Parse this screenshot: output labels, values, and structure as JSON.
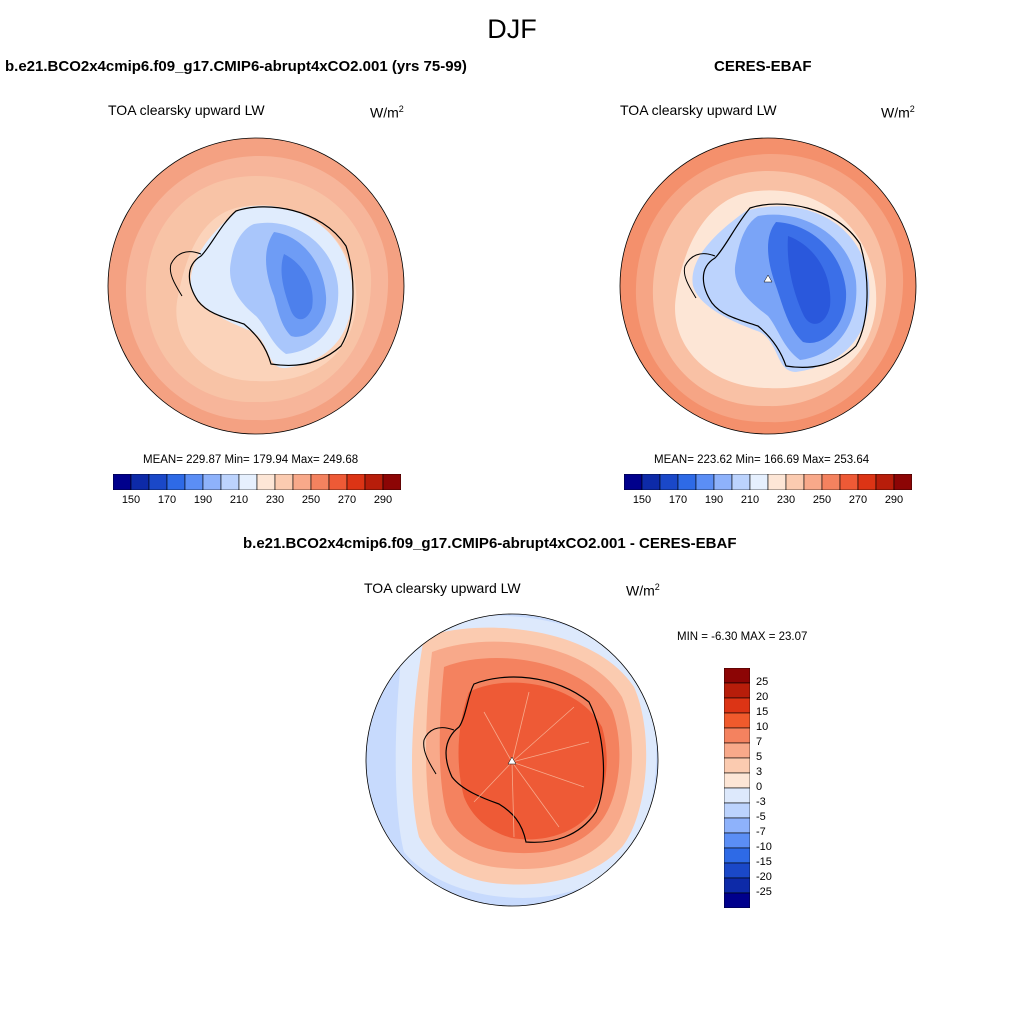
{
  "page": {
    "title": "DJF"
  },
  "panels": {
    "model": {
      "title": "b.e21.BCO2x4cmip6.f09_g17.CMIP6-abrupt4xCO2.001 (yrs 75-99)",
      "variable": "TOA clearsky upward LW",
      "units_base": "W/m",
      "units_exp": "2",
      "stats": "MEAN= 229.87  Min= 179.94  Max= 249.68"
    },
    "obs": {
      "title": "CERES-EBAF",
      "variable": "TOA clearsky upward LW",
      "units_base": "W/m",
      "units_exp": "2",
      "stats": "MEAN= 223.62  Min= 166.69  Max= 253.64"
    },
    "diff": {
      "title": "b.e21.BCO2x4cmip6.f09_g17.CMIP6-abrupt4xCO2.001 - CERES-EBAF",
      "variable": "TOA clearsky upward LW",
      "units_base": "W/m",
      "units_exp": "2",
      "stats": "MIN =  -6.30 MAX =  23.07"
    }
  },
  "colorbars": {
    "abs": {
      "colors": [
        "#00008c",
        "#0d2aa8",
        "#1a48c8",
        "#2e6ae6",
        "#5b8ef5",
        "#8eb2fb",
        "#bcd3fd",
        "#e6f0fe",
        "#fde6d6",
        "#fbcbb0",
        "#f8a98a",
        "#f4825f",
        "#ee5a36",
        "#dc3415",
        "#b71d0a",
        "#8c0505"
      ],
      "tick_labels": [
        "150",
        "170",
        "190",
        "210",
        "230",
        "250",
        "270",
        "290"
      ]
    },
    "diff": {
      "colors": [
        "#8c0505",
        "#b71d0a",
        "#dc3415",
        "#f05a2c",
        "#f4825f",
        "#f8a98a",
        "#fbcbb0",
        "#fde6d6",
        "#dde9fc",
        "#bcd3fd",
        "#8eb2fb",
        "#5b8ef5",
        "#2e6ae6",
        "#1a48c8",
        "#0d2aa8",
        "#00008c"
      ],
      "tick_labels": [
        "25",
        "20",
        "15",
        "10",
        "7",
        "5",
        "3",
        "0",
        "-3",
        "-5",
        "-7",
        "-10",
        "-15",
        "-20",
        "-25"
      ]
    }
  }
}
